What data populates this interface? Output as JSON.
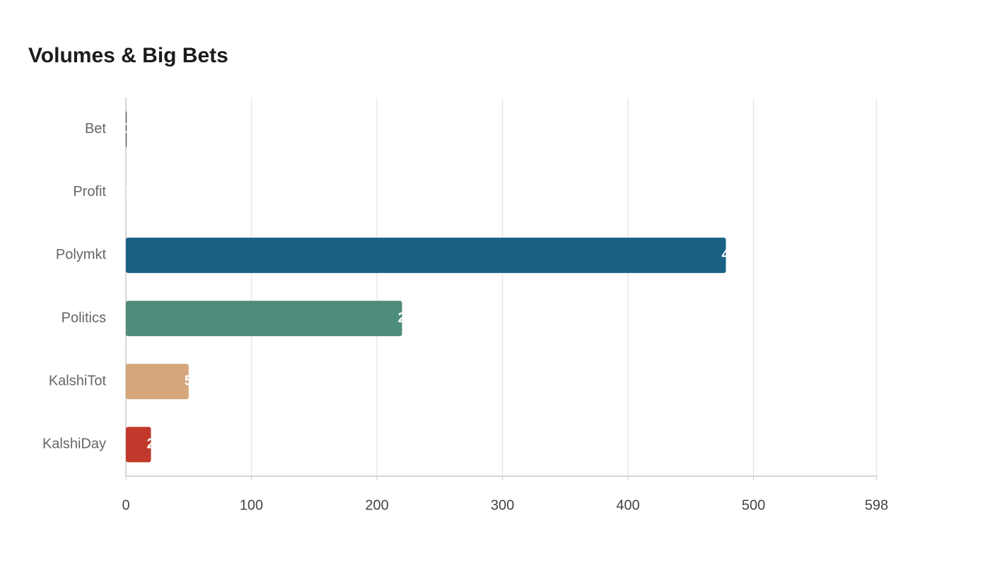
{
  "chart_data": {
    "type": "bar",
    "orientation": "horizontal",
    "title": "Volumes & Big Bets",
    "categories": [
      "Bet",
      "Profit",
      "Polymkt",
      "Politics",
      "KalshiTot",
      "KalshiDay"
    ],
    "values": [
      0.5,
      0,
      478,
      220,
      50,
      20
    ],
    "colors": [
      "#1f2d3d",
      "#cfd4d8",
      "#1a6186",
      "#4e8c7b",
      "#d4a679",
      "#c0392b"
    ],
    "xlim": [
      0,
      598
    ],
    "xticks": [
      0,
      100,
      200,
      300,
      400,
      500,
      598
    ],
    "grid": true
  }
}
